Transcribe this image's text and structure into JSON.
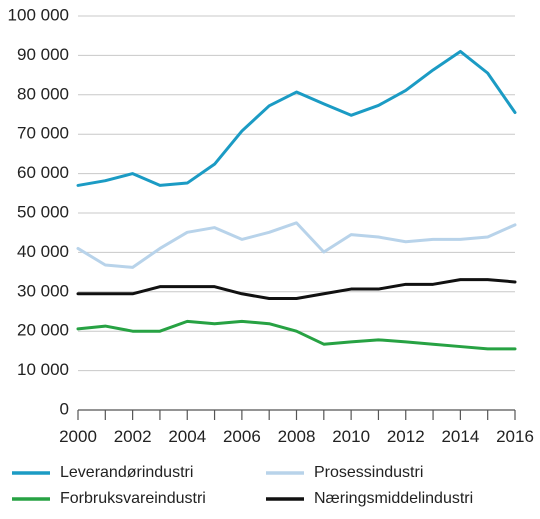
{
  "chart_data": {
    "type": "line",
    "x": [
      2000,
      2001,
      2002,
      2003,
      2004,
      2005,
      2006,
      2007,
      2008,
      2009,
      2010,
      2011,
      2012,
      2013,
      2014,
      2015,
      2016
    ],
    "x_ticks": [
      "2000",
      "2002",
      "2004",
      "2006",
      "2008",
      "2010",
      "2012",
      "2014",
      "2016"
    ],
    "y_ticks": [
      "0",
      "10 000",
      "20 000",
      "30 000",
      "40 000",
      "50 000",
      "60 000",
      "70 000",
      "80 000",
      "90 000",
      "100 000"
    ],
    "ylim": [
      0,
      100000
    ],
    "xlim": [
      2000,
      2016
    ],
    "grid": "horizontal",
    "legend_position": "bottom",
    "series": [
      {
        "name": "Leverandørindustri",
        "color": "#1b9bc4",
        "values": [
          57000,
          58200,
          60000,
          57000,
          57600,
          62400,
          70800,
          77200,
          80700,
          77700,
          74800,
          77300,
          81100,
          86300,
          91000,
          85500,
          75500
        ]
      },
      {
        "name": "Prosessindustri",
        "color": "#b8d3ea",
        "values": [
          41000,
          36800,
          36200,
          41000,
          45100,
          46300,
          43300,
          45100,
          47500,
          40100,
          44500,
          43900,
          42700,
          43300,
          43300,
          43900,
          47000
        ]
      },
      {
        "name": "Forbruksvareindustri",
        "color": "#27a243",
        "values": [
          20600,
          21300,
          20000,
          20000,
          22500,
          21900,
          22500,
          21900,
          20000,
          16700,
          17300,
          17800,
          17300,
          16700,
          16100,
          15500,
          15500
        ]
      },
      {
        "name": "Næringsmiddelindustri",
        "color": "#111111",
        "values": [
          29500,
          29500,
          29500,
          31300,
          31300,
          31300,
          29500,
          28300,
          28300,
          29500,
          30700,
          30700,
          31900,
          31900,
          33100,
          33100,
          32500
        ]
      }
    ],
    "legend_order": [
      0,
      1,
      2,
      3
    ]
  }
}
